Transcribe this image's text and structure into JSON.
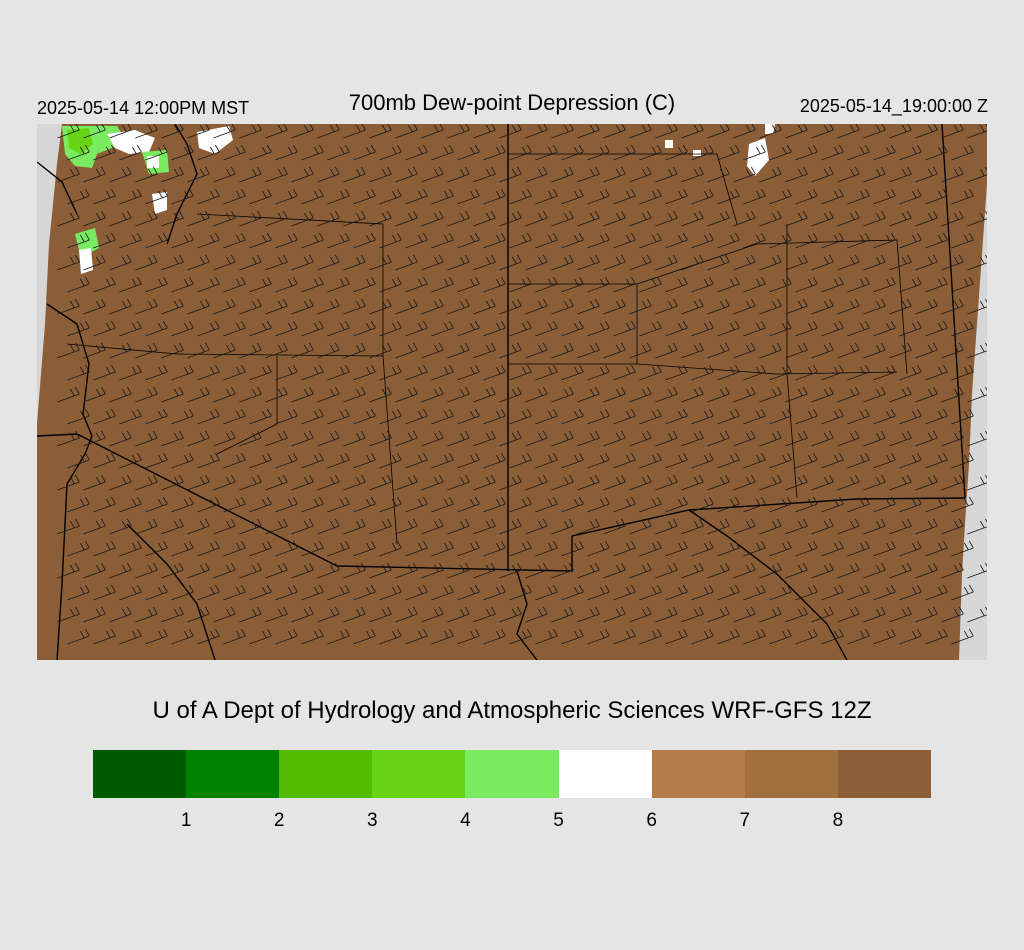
{
  "header": {
    "valid_local": "2025-05-14 12:00PM MST",
    "title": "700mb Dew-point Depression (C)",
    "valid_utc": "2025-05-14_19:00:00 Z"
  },
  "credit": "U of A Dept of Hydrology and Atmospheric Sciences WRF-GFS 12Z",
  "colors": {
    "page_background": "#e5e5e5",
    "map_fill": "#8b5e38",
    "missing_data": "#d6d6d6",
    "borders": "#000000"
  },
  "legend": {
    "segments": [
      {
        "color": "#005c00"
      },
      {
        "color": "#008200"
      },
      {
        "color": "#52ba00"
      },
      {
        "color": "#66d414"
      },
      {
        "color": "#7aeb60"
      },
      {
        "color": "#ffffff"
      },
      {
        "color": "#b37d4a"
      },
      {
        "color": "#a2703f"
      },
      {
        "color": "#8b5e38"
      }
    ],
    "ticks": [
      "1",
      "2",
      "3",
      "4",
      "5",
      "6",
      "7",
      "8"
    ]
  }
}
